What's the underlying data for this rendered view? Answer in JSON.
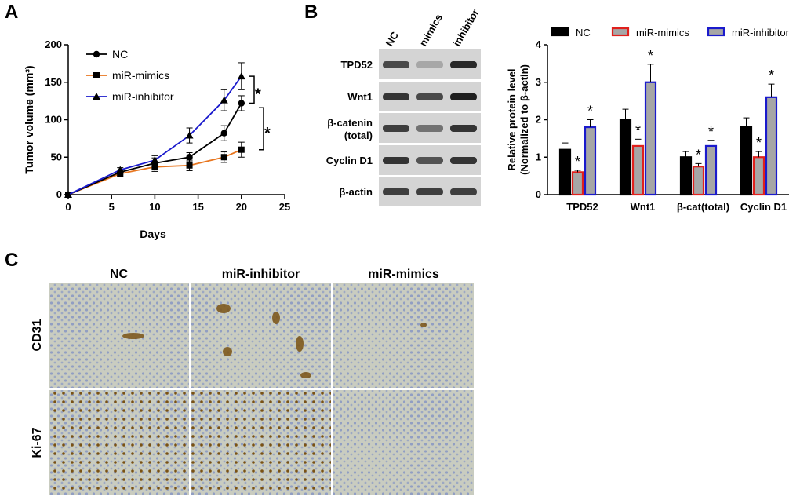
{
  "panels": {
    "a": "A",
    "b": "B",
    "c": "C"
  },
  "chart_data": [
    {
      "type": "line",
      "panel": "A",
      "xlabel": "Days",
      "ylabel": "Tumor volume (mm³)",
      "xlim": [
        0,
        25
      ],
      "ylim": [
        0,
        200
      ],
      "xticks": [
        "0",
        "5",
        "10",
        "15",
        "20",
        "25"
      ],
      "yticks": [
        "0",
        "50",
        "100",
        "150",
        "200"
      ],
      "x": [
        0,
        6,
        10,
        14,
        18,
        20
      ],
      "legend_position": "top-left",
      "significance": [
        "*",
        "*"
      ],
      "series": [
        {
          "name": "NC",
          "marker": "circle",
          "color": "#000000",
          "values": [
            0,
            30,
            42,
            50,
            82,
            122
          ],
          "errors": [
            0,
            3,
            7,
            6,
            10,
            10
          ]
        },
        {
          "name": "miR-mimics",
          "marker": "square",
          "color": "#e8761f",
          "values": [
            0,
            28,
            37,
            39,
            50,
            60
          ],
          "errors": [
            0,
            3,
            6,
            7,
            7,
            10
          ]
        },
        {
          "name": "miR-inhibitor",
          "marker": "triangle",
          "color": "#1a1acc",
          "values": [
            0,
            33,
            46,
            79,
            126,
            158
          ],
          "errors": [
            0,
            3,
            6,
            10,
            14,
            18
          ]
        }
      ]
    },
    {
      "type": "bar",
      "panel": "B",
      "ylabel": "Relative protein level",
      "ylabel2": "(Normalized to β-actin)",
      "categories": [
        "TPD52",
        "Wnt1",
        "β-cat(total)",
        "Cyclin D1"
      ],
      "ylim": [
        0,
        4
      ],
      "yticks": [
        "0",
        "1",
        "2",
        "3",
        "4"
      ],
      "legend_position": "top",
      "series": [
        {
          "name": "NC",
          "fill": "#000000",
          "stroke": "#000000",
          "values": [
            1.2,
            2.0,
            1.0,
            1.8
          ],
          "errors": [
            0.18,
            0.28,
            0.15,
            0.25
          ]
        },
        {
          "name": "miR-mimics",
          "fill": "#a6a6a6",
          "stroke": "#e0201c",
          "values": [
            0.6,
            1.3,
            0.75,
            1.0
          ],
          "errors": [
            0.05,
            0.18,
            0.08,
            0.15
          ]
        },
        {
          "name": "miR-inhibitor",
          "fill": "#a6a6a6",
          "stroke": "#1a1acc",
          "values": [
            1.8,
            3.0,
            1.3,
            2.6
          ],
          "errors": [
            0.2,
            0.48,
            0.15,
            0.35
          ]
        }
      ],
      "significance_marker": "*"
    }
  ],
  "western": {
    "columns": [
      "NC",
      "mimics",
      "inhibitor"
    ],
    "rows": [
      {
        "label": "TPD52",
        "intensity": [
          0.75,
          0.3,
          0.9
        ]
      },
      {
        "label": "Wnt1",
        "intensity": [
          0.85,
          0.75,
          0.95
        ]
      },
      {
        "label": "β-catenin",
        "label2": "(total)",
        "intensity": [
          0.8,
          0.55,
          0.85
        ]
      },
      {
        "label": "Cyclin D1",
        "intensity": [
          0.85,
          0.7,
          0.85
        ]
      },
      {
        "label": "β-actin",
        "intensity": [
          0.8,
          0.8,
          0.8
        ]
      }
    ]
  },
  "ihc": {
    "columns": [
      "NC",
      "miR-inhibitor",
      "miR-mimics"
    ],
    "rows": [
      "CD31",
      "Ki-67"
    ],
    "background_color": "#c9ccc0",
    "nuclei_color": "#7f8fc4",
    "stain_color": "#7a5214"
  }
}
